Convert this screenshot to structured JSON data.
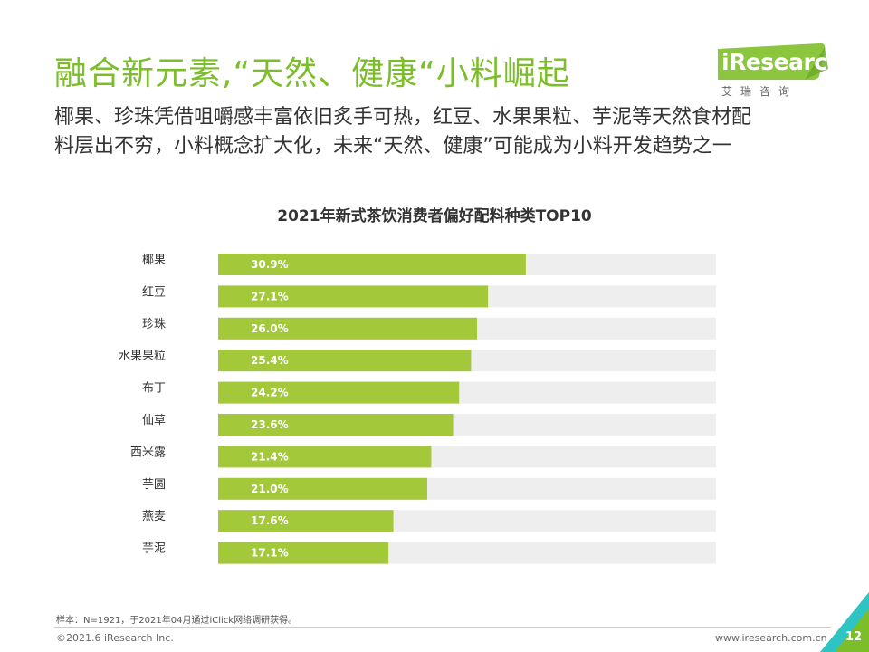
{
  "title": "融合新元素,“天然、健康“小料崛起",
  "subtitle_lines": [
    "椰果、珍珠凭借咀嚼感丰富依旧炙手可热，红豆、水果果粒、芋泥等天然食材配",
    "料层出不穷，小料概念扩大化，未来“天然、健康”可能成为小料开发趋势之一"
  ],
  "logo": {
    "brand": "iResearch",
    "cn": "艾瑞咨询"
  },
  "chart_data": {
    "type": "bar",
    "orientation": "horizontal",
    "title": "2021年新式茶饮消费者偏好配料种类TOP10",
    "categories": [
      "椰果",
      "红豆",
      "珍珠",
      "水果果粒",
      "布丁",
      "仙草",
      "西米露",
      "芋圆",
      "燕麦",
      "芋泥"
    ],
    "values": [
      30.9,
      27.1,
      26.0,
      25.4,
      24.2,
      23.6,
      21.4,
      21.0,
      17.6,
      17.1
    ],
    "value_labels": [
      "30.9%",
      "27.1%",
      "26.0%",
      "25.4%",
      "24.2%",
      "23.6%",
      "21.4%",
      "21.0%",
      "17.6%",
      "17.1%"
    ],
    "xlim": [
      0,
      50
    ],
    "colors": {
      "bar": "#a3c83a",
      "track": "#eeeeee",
      "value_label": "#ffffff",
      "category_label": "#333333"
    }
  },
  "footnote": "样本：N=1921，于2021年04月通过iClick网络调研获得。",
  "copyright": "©2021.6 iResearch Inc.",
  "website": "www.iresearch.com.cn",
  "page_number": "12",
  "accent_color": "#7cbd2a"
}
